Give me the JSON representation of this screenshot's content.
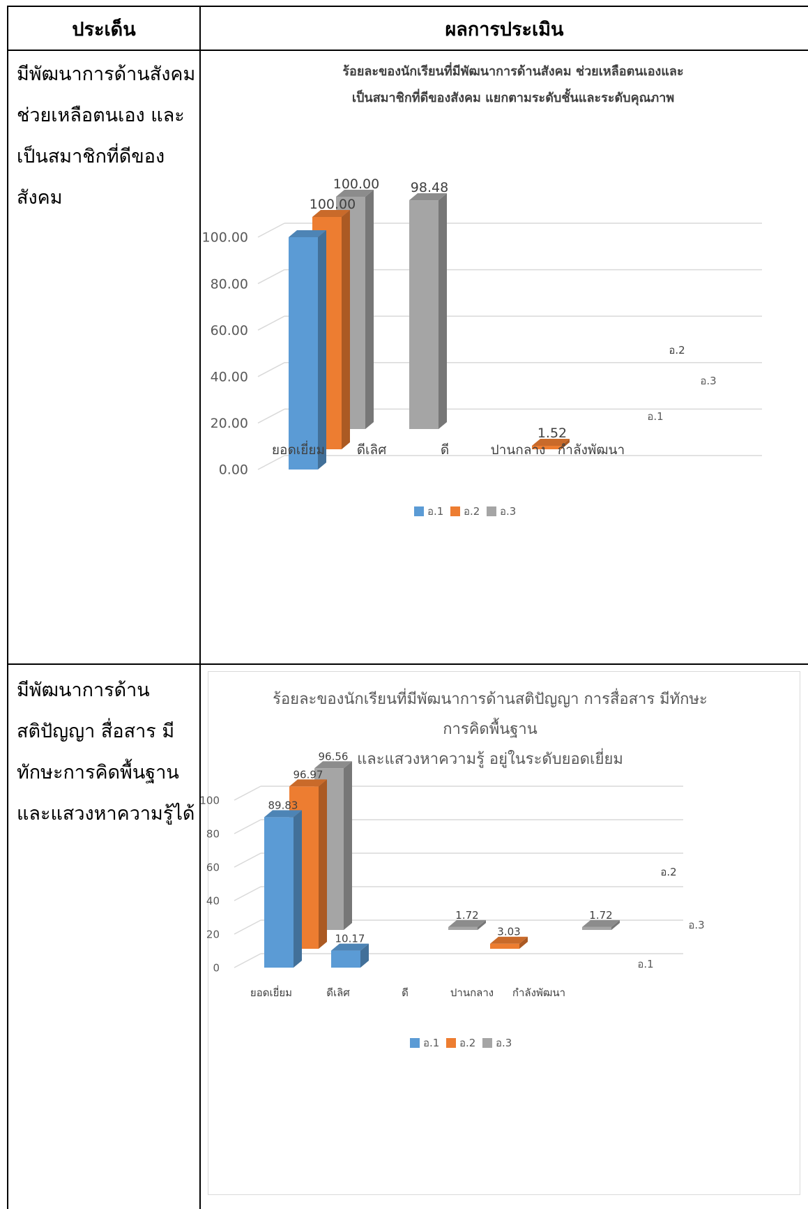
{
  "table": {
    "header": {
      "issue": "ประเด็น",
      "result": "ผลการประเมิน"
    },
    "rows": [
      {
        "issue_lines": [
          "มีพัฒนาการด้านสังคม",
          "ช่วยเหลือตนเอง และ",
          "เป็นสมาชิกที่ดีของ",
          "สังคม"
        ]
      },
      {
        "issue_lines": [
          "มีพัฒนาการด้าน",
          "สติปัญญา สื่อสาร มี",
          "ทักษะการคิดพื้นฐาน",
          "และแสวงหาความรู้ได้"
        ]
      }
    ]
  },
  "chart_data": [
    {
      "type": "bar",
      "title": "ร้อยละของนักเรียนที่มีพัฒนาการด้านสังคม ช่วยเหลือตนเองและ เป็นสมาชิกที่ดีของสังคม แยกตามระดับชั้นและระดับคุณภาพ",
      "title_lines": [
        "ร้อยละของนักเรียนที่มีพัฒนาการด้านสังคม ช่วยเหลือตนเองและ",
        "เป็นสมาชิกที่ดีของสังคม แยกตามระดับชั้นและระดับคุณภาพ"
      ],
      "categories": [
        "ยอดเยี่ยม",
        "ดีเลิศ",
        "ดี",
        "ปานกลาง",
        "กำลังพัฒนา"
      ],
      "series": [
        {
          "name": "อ.1",
          "color": "#5b9bd5",
          "values": [
            100.0,
            null,
            null,
            null,
            null
          ]
        },
        {
          "name": "อ.2",
          "color": "#ed7d31",
          "values": [
            100.0,
            null,
            null,
            1.52,
            null
          ]
        },
        {
          "name": "อ.3",
          "color": "#a5a5a5",
          "values": [
            100.0,
            98.48,
            null,
            null,
            null
          ]
        }
      ],
      "data_labels": [
        {
          "series": 0,
          "category": 0,
          "text": ""
        },
        {
          "series": 1,
          "category": 0,
          "text": "100.00"
        },
        {
          "series": 2,
          "category": 0,
          "text": "100.00"
        },
        {
          "series": 2,
          "category": 1,
          "text": "98.48"
        },
        {
          "series": 1,
          "category": 3,
          "text": "1.52"
        }
      ],
      "y_ticks": [
        "0.00",
        "20.00",
        "40.00",
        "60.00",
        "80.00",
        "100.00"
      ],
      "ylim": [
        0,
        100
      ],
      "depth_axis_labels": [
        "อ.2",
        "อ.3",
        "อ.1"
      ],
      "legend": [
        "อ.1",
        "อ.2",
        "อ.3"
      ],
      "legend_position": "bottom",
      "grid": true
    },
    {
      "type": "bar",
      "title": "ร้อยละของนักเรียนที่มีพัฒนาการด้านสติปัญญา การสื่อสาร มีทักษะ การคิดพื้นฐาน และแสวงหาความรู้ อยู่ในระดับยอดเยี่ยม",
      "title_lines": [
        "ร้อยละของนักเรียนที่มีพัฒนาการด้านสติปัญญา การสื่อสาร มีทักษะ",
        "การคิดพื้นฐาน",
        "และแสวงหาความรู้ อยู่ในระดับยอดเยี่ยม"
      ],
      "categories": [
        "ยอดเยี่ยม",
        "ดีเลิศ",
        "ดี",
        "ปานกลาง",
        "กำลังพัฒนา"
      ],
      "series": [
        {
          "name": "อ.1",
          "color": "#5b9bd5",
          "values": [
            89.83,
            10.17,
            null,
            null,
            null
          ]
        },
        {
          "name": "อ.2",
          "color": "#ed7d31",
          "values": [
            96.97,
            null,
            null,
            3.03,
            null
          ]
        },
        {
          "name": "อ.3",
          "color": "#a5a5a5",
          "values": [
            96.56,
            null,
            1.72,
            null,
            1.72
          ]
        }
      ],
      "data_labels": [
        {
          "series": 0,
          "category": 0,
          "text": "89.83"
        },
        {
          "series": 1,
          "category": 0,
          "text": "96.97"
        },
        {
          "series": 2,
          "category": 0,
          "text": "96.56"
        },
        {
          "series": 0,
          "category": 1,
          "text": "10.17"
        },
        {
          "series": 2,
          "category": 2,
          "text": "1.72"
        },
        {
          "series": 1,
          "category": 3,
          "text": "3.03"
        },
        {
          "series": 2,
          "category": 4,
          "text": "1.72"
        }
      ],
      "y_ticks": [
        "0",
        "20",
        "40",
        "60",
        "80",
        "100"
      ],
      "ylim": [
        0,
        100
      ],
      "depth_axis_labels": [
        "อ.2",
        "อ.3",
        "อ.1"
      ],
      "legend": [
        "อ.1",
        "อ.2",
        "อ.3"
      ],
      "legend_position": "bottom",
      "grid": true
    }
  ]
}
